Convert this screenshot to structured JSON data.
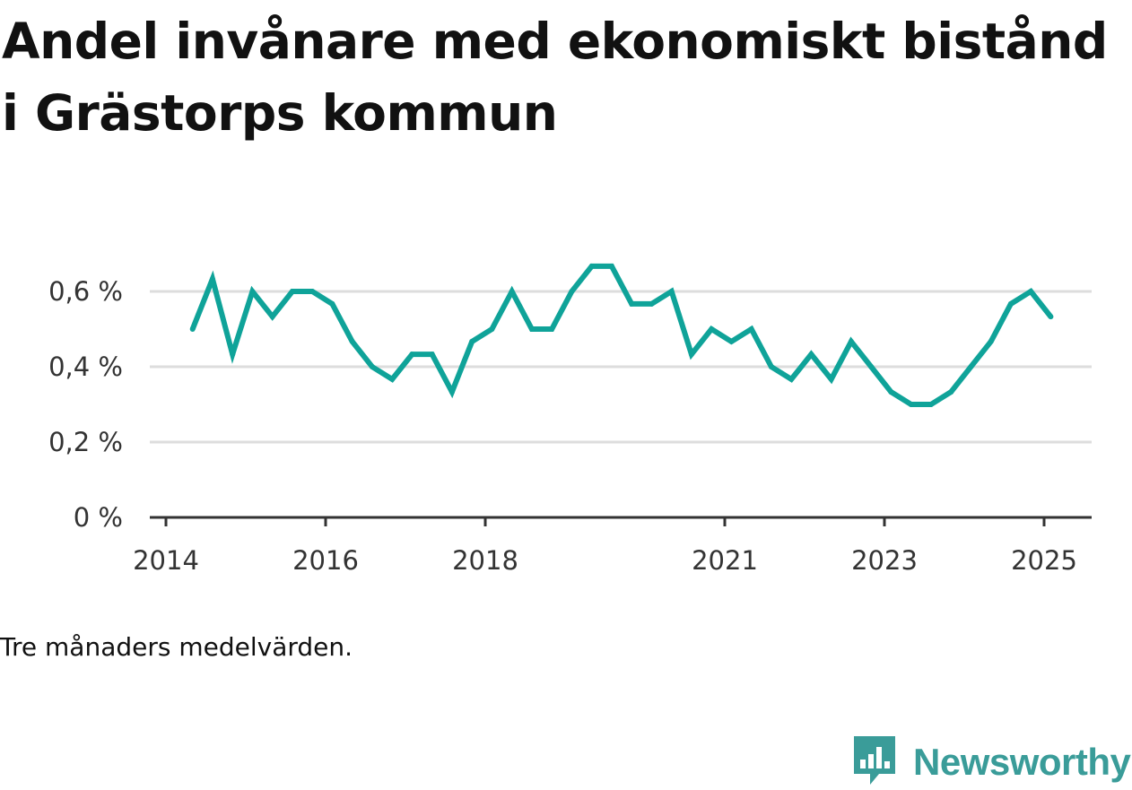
{
  "title": "Andel invånare med ekonomiskt bistånd i Grästorps kommun",
  "note": "Tre månaders medelvärden.",
  "brand": {
    "name": "Newsworthy",
    "icon": "newsworthy-logo-icon",
    "color": "#3a9c99"
  },
  "colors": {
    "line": "#0fa399",
    "grid": "#dddddd",
    "axis": "#333333"
  },
  "chart_data": {
    "type": "line",
    "title": "Andel invånare med ekonomiskt bistånd i Grästorps kommun",
    "xlabel": "",
    "ylabel": "",
    "ylim": [
      0,
      0.7
    ],
    "y_ticks": [
      {
        "value": 0,
        "label": "0 %"
      },
      {
        "value": 0.2,
        "label": "0,2 %"
      },
      {
        "value": 0.4,
        "label": "0,4 %"
      },
      {
        "value": 0.6,
        "label": "0,6 %"
      }
    ],
    "x_ticks": [
      {
        "value": "2014-01",
        "label": "2014"
      },
      {
        "value": "2016-01",
        "label": "2016"
      },
      {
        "value": "2018-01",
        "label": "2018"
      },
      {
        "value": "2021-01",
        "label": "2021"
      },
      {
        "value": "2023-01",
        "label": "2023"
      },
      {
        "value": "2025-01",
        "label": "2025"
      }
    ],
    "grid": true,
    "legend": "none",
    "series": [
      {
        "x": [
          "2014-05",
          "2014-08",
          "2014-11",
          "2015-02",
          "2015-05",
          "2015-08",
          "2015-11",
          "2016-02",
          "2016-05",
          "2016-08",
          "2016-11",
          "2017-02",
          "2017-05",
          "2017-08",
          "2017-11",
          "2018-02",
          "2018-05",
          "2018-08",
          "2018-11",
          "2019-02",
          "2019-05",
          "2019-08",
          "2019-11",
          "2020-02",
          "2020-05",
          "2020-08",
          "2020-11",
          "2021-02",
          "2021-05",
          "2021-08",
          "2021-11",
          "2022-02",
          "2022-05",
          "2022-08",
          "2022-11",
          "2023-02",
          "2023-05",
          "2023-08",
          "2023-11",
          "2024-02",
          "2024-05",
          "2024-08",
          "2024-11",
          "2025-02"
        ],
        "values": [
          0.5,
          0.633,
          0.433,
          0.6,
          0.533,
          0.6,
          0.6,
          0.567,
          0.467,
          0.4,
          0.367,
          0.433,
          0.433,
          0.333,
          0.467,
          0.5,
          0.6,
          0.5,
          0.5,
          0.6,
          0.667,
          0.667,
          0.567,
          0.567,
          0.6,
          0.433,
          0.5,
          0.467,
          0.5,
          0.4,
          0.367,
          0.433,
          0.367,
          0.467,
          0.4,
          0.333,
          0.3,
          0.3,
          0.333,
          0.4,
          0.467,
          0.567,
          0.6,
          0.533
        ]
      }
    ]
  }
}
